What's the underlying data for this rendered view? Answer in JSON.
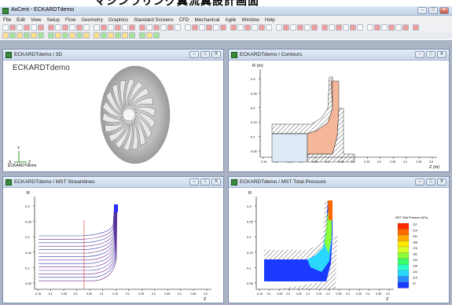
{
  "banner": {
    "text": "マシンラリング翼流翼設計画面"
  },
  "app": {
    "title": "AxCent - ECKARDTdemo",
    "min": "–",
    "max": "□",
    "close": "✕"
  },
  "menu": [
    "File",
    "Edit",
    "View",
    "Setup",
    "Flow",
    "Geometry",
    "Graphics",
    "Standard Screens",
    "CFD",
    "Mechanical",
    "Agile",
    "Window",
    "Help"
  ],
  "windows": {
    "w3d": {
      "title": "ECKARDTdemo / 3D",
      "label": "ECKARDTdemo",
      "small": "ECKARDTdemo",
      "ax_x": "X",
      "ax_y": "Y",
      "ax_z": "Z"
    },
    "contours": {
      "title": "ECKARDTdemo / Contours",
      "ylabel": "R (m)",
      "xlabel": "Z (m)"
    },
    "stream": {
      "title": "ECKARDTdemo / MST Streamlines",
      "ylabel": "R",
      "xlabel": "Z"
    },
    "pressure": {
      "title": "ECKARDTdemo / MST Total Pressure",
      "ylabel": "R",
      "xlabel": "Z",
      "legend_title": "MST Total Pressure (kPa)"
    }
  },
  "legend_values": [
    "227",
    "214",
    "201",
    "188",
    "175",
    "162",
    "149",
    "136",
    "123",
    "110",
    "97"
  ],
  "legend_colors": [
    "#ff2a00",
    "#ff6a00",
    "#ffaa00",
    "#ffe600",
    "#d8ff2a",
    "#8cff3a",
    "#3aff6a",
    "#2affc8",
    "#2ad8ff",
    "#2a8cff",
    "#1a3aff"
  ],
  "y_ticks": [
    "0.3",
    "0.25",
    "0.2",
    "0.15",
    "0.1",
    "0.05"
  ],
  "x_ticks": [
    "-0.15",
    "-0.1",
    "-0.05",
    "0.0",
    "0.05",
    "0.1",
    "0.15",
    "0.2",
    "0.25",
    "0.3",
    "0.35",
    "0.4",
    "0.45",
    "0.5"
  ]
}
